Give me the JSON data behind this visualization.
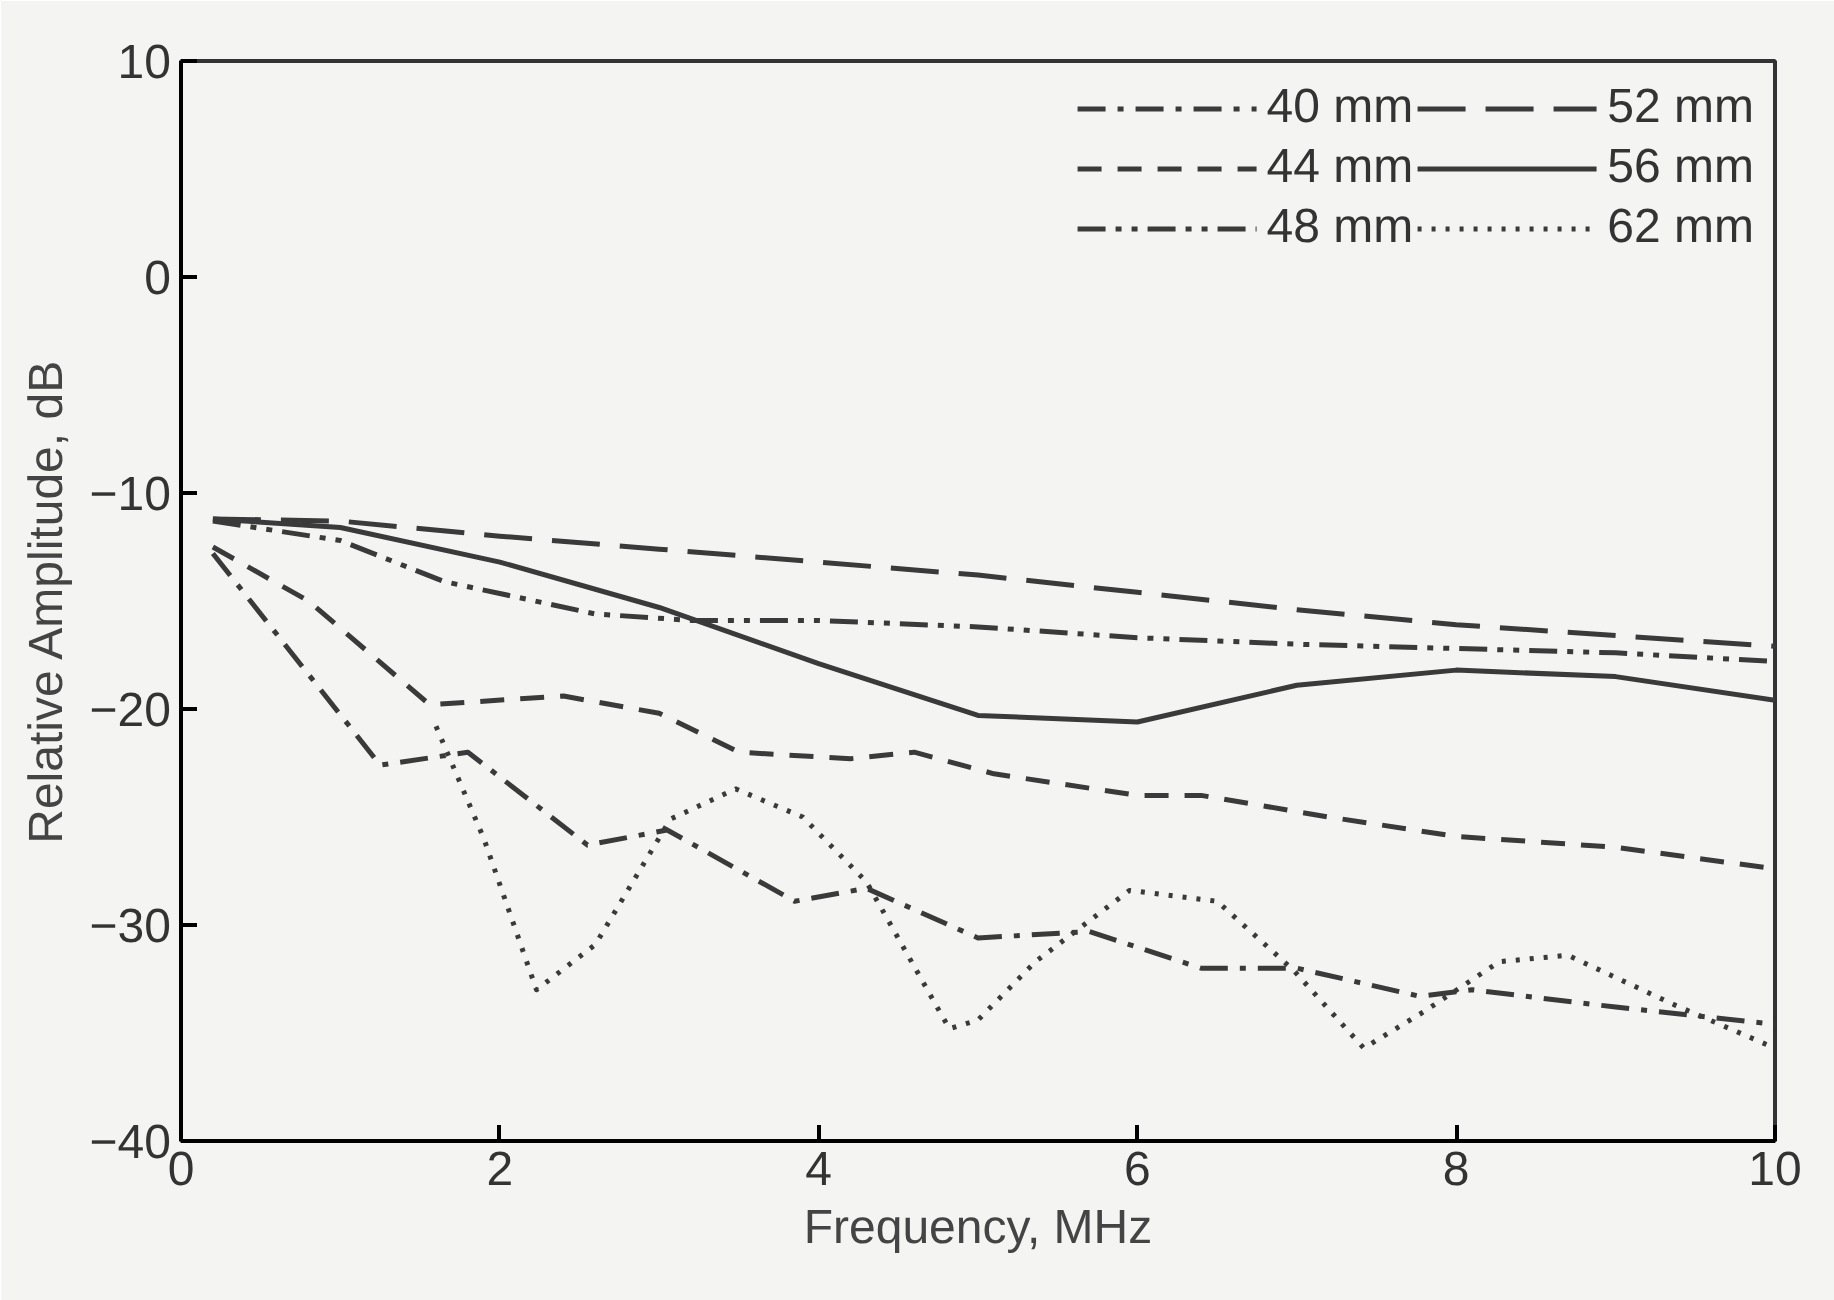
{
  "chart_data": {
    "type": "line",
    "xlabel": "Frequency, MHz",
    "ylabel": "Relative Amplitude, dB",
    "xlim": [
      0,
      10
    ],
    "ylim": [
      -40,
      10
    ],
    "xticks": [
      0,
      2,
      4,
      6,
      8,
      10
    ],
    "yticks": [
      -40,
      -30,
      -20,
      -10,
      0,
      10
    ],
    "grid": false,
    "legend": "top right",
    "marker": "none",
    "series": [
      {
        "name": "40 mm",
        "color": "#3a3a3a",
        "line_style": "dashdot",
        "x": [
          0.2,
          1.25,
          1.8,
          2.55,
          3.05,
          3.85,
          4.3,
          5.0,
          5.7,
          6.4,
          7.0,
          7.77,
          8.1,
          9.0,
          10.0
        ],
        "values": [
          -12.8,
          -22.6,
          -22,
          -26.3,
          -25.6,
          -28.9,
          -28.3,
          -30.6,
          -30.3,
          -32,
          -32,
          -33.3,
          -33,
          -33.8,
          -34.6
        ]
      },
      {
        "name": "44 mm",
        "color": "#3a3a3a",
        "line_style": "dashed",
        "x": [
          0.2,
          0.8,
          1.56,
          2.4,
          3.0,
          3.5,
          4.2,
          4.6,
          5.1,
          6.0,
          6.4,
          7.2,
          8.0,
          9.0,
          10.0
        ],
        "values": [
          -12.5,
          -15,
          -19.8,
          -19.4,
          -20.2,
          -22,
          -22.3,
          -22,
          -23,
          -24,
          -24,
          -25,
          -25.9,
          -26.4,
          -27.4
        ]
      },
      {
        "name": "48 mm",
        "color": "#3a3a3a",
        "line_style": "dashdotdot",
        "x": [
          0.2,
          1.0,
          1.65,
          2.6,
          3.2,
          4.0,
          5.0,
          6.0,
          7.0,
          8.0,
          9.0,
          10.0
        ],
        "values": [
          -11.3,
          -12.2,
          -14.1,
          -15.6,
          -15.9,
          -15.9,
          -16.2,
          -16.7,
          -17,
          -17.2,
          -17.4,
          -17.8
        ]
      },
      {
        "name": "52 mm",
        "color": "#3a3a3a",
        "line_style": "longdash",
        "x": [
          0.2,
          1,
          2,
          3,
          4,
          5,
          6,
          7,
          8,
          9,
          10
        ],
        "values": [
          -11.2,
          -11.3,
          -12,
          -12.6,
          -13.2,
          -13.8,
          -14.6,
          -15.4,
          -16.1,
          -16.6,
          -17.1
        ]
      },
      {
        "name": "56 mm",
        "color": "#3a3a3a",
        "line_style": "solid",
        "x": [
          0.2,
          1,
          2,
          3,
          4,
          5,
          6,
          7,
          8,
          9,
          10
        ],
        "values": [
          -11.2,
          -11.6,
          -13.2,
          -15.3,
          -17.9,
          -20.3,
          -20.6,
          -18.9,
          -18.2,
          -18.5,
          -19.6
        ]
      },
      {
        "name": "62 mm",
        "color": "#3a3a3a",
        "line_style": "dotted",
        "x": [
          1.6,
          1.9,
          2.23,
          2.6,
          3.07,
          3.48,
          3.9,
          4.3,
          4.82,
          5.0,
          5.36,
          5.95,
          6.5,
          6.98,
          7.42,
          7.8,
          8.27,
          8.7,
          9.37,
          10.0
        ],
        "values": [
          -20.8,
          -26,
          -33,
          -30.9,
          -25.1,
          -23.7,
          -25,
          -28,
          -34.8,
          -34.4,
          -31.7,
          -28.4,
          -28.9,
          -32.1,
          -35.7,
          -34,
          -31.7,
          -31.4,
          -33.7,
          -35.7
        ]
      }
    ]
  }
}
